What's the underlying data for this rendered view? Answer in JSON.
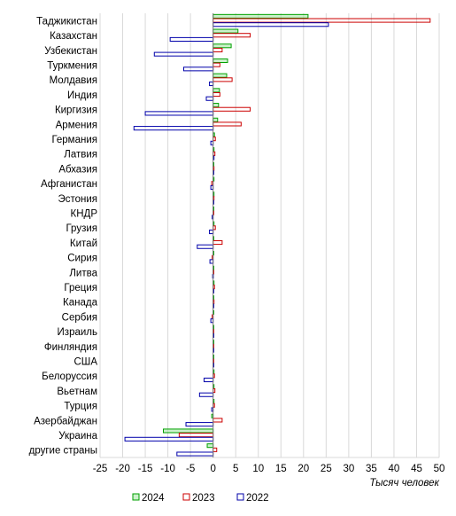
{
  "chart_data": {
    "type": "bar",
    "orientation": "horizontal",
    "title": "",
    "xlabel": "Тысяч человек",
    "ylabel": "",
    "xlim": [
      -25,
      50
    ],
    "xticks": [
      -25,
      -20,
      -15,
      -10,
      -5,
      0,
      5,
      10,
      15,
      20,
      25,
      30,
      35,
      40,
      45,
      50
    ],
    "grid": "vertical",
    "legend_position": "bottom",
    "categories": [
      "Таджикистан",
      "Казахстан",
      "Узбекистан",
      "Туркмения",
      "Молдавия",
      "Индия",
      "Киргизия",
      "Армения",
      "Германия",
      "Латвия",
      "Абхазия",
      "Афганистан",
      "Эстония",
      "КНДР",
      "Грузия",
      "Китай",
      "Сирия",
      "Литва",
      "Греция",
      "Канада",
      "Сербия",
      "Израиль",
      "Финляндия",
      "США",
      "Белоруссия",
      "Вьетнам",
      "Турция",
      "Азербайджан",
      "Украина",
      "другие страны"
    ],
    "series": [
      {
        "name": "2024",
        "color": "#00a000",
        "values": [
          21,
          5.5,
          4,
          3.2,
          3,
          1.4,
          1.2,
          1,
          0.3,
          0.2,
          0.1,
          0.2,
          0.2,
          0.1,
          0.2,
          0.1,
          0.1,
          0.1,
          0.2,
          0.1,
          0.1,
          0.1,
          0.1,
          0.1,
          0.2,
          0.2,
          0.2,
          -0.3,
          -11,
          -1.3
        ]
      },
      {
        "name": "2023",
        "color": "#cc0000",
        "values": [
          48,
          8.2,
          2,
          1.5,
          4.2,
          1.5,
          8.2,
          6.2,
          0.5,
          0.4,
          0.2,
          -0.3,
          0.2,
          0.1,
          0.5,
          2,
          -0.2,
          0.1,
          0.3,
          0.2,
          -0.2,
          0.1,
          0.1,
          0.1,
          0.3,
          0.4,
          0.3,
          2,
          -7.5,
          0.8
        ]
      },
      {
        "name": "2022",
        "color": "#0000aa",
        "values": [
          25.5,
          -9.5,
          -13,
          -6.5,
          -0.8,
          -1.5,
          -15,
          -17.5,
          -0.5,
          0.2,
          0.1,
          -0.5,
          0.1,
          -0.2,
          -0.8,
          -3.5,
          -0.7,
          -0.1,
          0.1,
          0.1,
          -0.5,
          0.1,
          0.1,
          0.1,
          -2,
          -3,
          -0.3,
          -6,
          -19.5,
          -8
        ]
      }
    ]
  }
}
